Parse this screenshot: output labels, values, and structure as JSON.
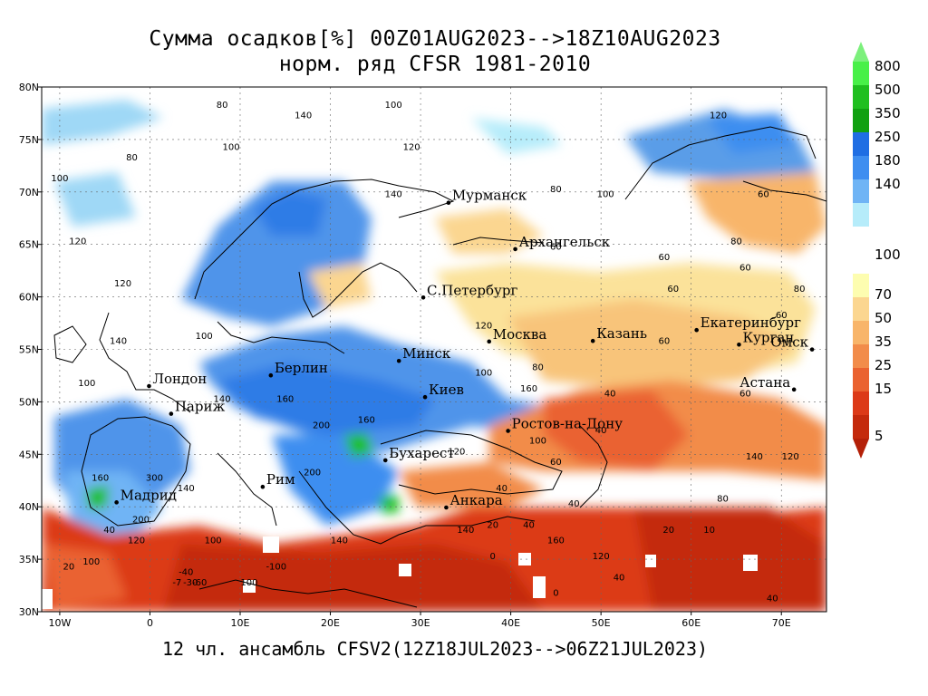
{
  "title_line1": "Сумма осадков[%] 00Z01AUG2023-->18Z10AUG2023",
  "title_line2": "норм. ряд CFSR 1981-2010",
  "footer": "12 чл. ансамбль CFSV2(12Z18JUL2023-->06Z21JUL2023)",
  "map": {
    "lon_range": [
      -12,
      75
    ],
    "lat_range": [
      30,
      80
    ],
    "lon_ticks": [
      {
        "v": -10,
        "label": "10W"
      },
      {
        "v": 0,
        "label": "0"
      },
      {
        "v": 10,
        "label": "10E"
      },
      {
        "v": 20,
        "label": "20E"
      },
      {
        "v": 30,
        "label": "30E"
      },
      {
        "v": 40,
        "label": "40E"
      },
      {
        "v": 50,
        "label": "50E"
      },
      {
        "v": 60,
        "label": "60E"
      },
      {
        "v": 70,
        "label": "70E"
      }
    ],
    "lat_ticks": [
      {
        "v": 30,
        "label": "30N"
      },
      {
        "v": 35,
        "label": "35N"
      },
      {
        "v": 40,
        "label": "40N"
      },
      {
        "v": 45,
        "label": "45N"
      },
      {
        "v": 50,
        "label": "50N"
      },
      {
        "v": 55,
        "label": "55N"
      },
      {
        "v": 60,
        "label": "60N"
      },
      {
        "v": 65,
        "label": "65N"
      },
      {
        "v": 70,
        "label": "70N"
      },
      {
        "v": 75,
        "label": "75N"
      },
      {
        "v": 80,
        "label": "80N"
      }
    ],
    "cities": [
      {
        "name": "Мурманск",
        "lon": 33.1,
        "lat": 68.97
      },
      {
        "name": "Архангельск",
        "lon": 40.5,
        "lat": 64.55
      },
      {
        "name": "С.Петербург",
        "lon": 30.3,
        "lat": 59.94
      },
      {
        "name": "Москва",
        "lon": 37.6,
        "lat": 55.75
      },
      {
        "name": "Казань",
        "lon": 49.1,
        "lat": 55.8
      },
      {
        "name": "Екатеринбург",
        "lon": 60.6,
        "lat": 56.84
      },
      {
        "name": "Курган",
        "lon": 65.3,
        "lat": 55.45
      },
      {
        "name": "Омск",
        "lon": 73.4,
        "lat": 54.99
      },
      {
        "name": "Астана",
        "lon": 71.4,
        "lat": 51.17
      },
      {
        "name": "Минск",
        "lon": 27.6,
        "lat": 53.9
      },
      {
        "name": "Берлин",
        "lon": 13.4,
        "lat": 52.52
      },
      {
        "name": "Лондон",
        "lon": -0.1,
        "lat": 51.5
      },
      {
        "name": "Париж",
        "lon": 2.35,
        "lat": 48.86
      },
      {
        "name": "Киев",
        "lon": 30.5,
        "lat": 50.45
      },
      {
        "name": "Ростов-на-Дону",
        "lon": 39.7,
        "lat": 47.23
      },
      {
        "name": "Бухарест",
        "lon": 26.1,
        "lat": 44.43
      },
      {
        "name": "Рим",
        "lon": 12.5,
        "lat": 41.9
      },
      {
        "name": "Мадрид",
        "lon": -3.7,
        "lat": 40.42
      },
      {
        "name": "Анкара",
        "lon": 32.85,
        "lat": 39.93
      }
    ],
    "contour_labels": [
      {
        "t": "100",
        "lon": -10,
        "lat": 71
      },
      {
        "t": "120",
        "lon": -8,
        "lat": 65
      },
      {
        "t": "80",
        "lon": -2,
        "lat": 73
      },
      {
        "t": "140",
        "lon": 17,
        "lat": 77
      },
      {
        "t": "100",
        "lon": 27,
        "lat": 78
      },
      {
        "t": "120",
        "lon": 29,
        "lat": 74
      },
      {
        "t": "120",
        "lon": 63,
        "lat": 77
      },
      {
        "t": "80",
        "lon": 8,
        "lat": 78
      },
      {
        "t": "100",
        "lon": 9,
        "lat": 74
      },
      {
        "t": "140",
        "lon": 27,
        "lat": 69.5
      },
      {
        "t": "80",
        "lon": 45,
        "lat": 70
      },
      {
        "t": "100",
        "lon": 50.5,
        "lat": 69.5
      },
      {
        "t": "60",
        "lon": 45,
        "lat": 64.5
      },
      {
        "t": "60",
        "lon": 57,
        "lat": 63.5
      },
      {
        "t": "60",
        "lon": 58,
        "lat": 60.5
      },
      {
        "t": "60",
        "lon": 66,
        "lat": 62.5
      },
      {
        "t": "60",
        "lon": 68,
        "lat": 69.5
      },
      {
        "t": "80",
        "lon": 65,
        "lat": 65
      },
      {
        "t": "80",
        "lon": 72,
        "lat": 60.5
      },
      {
        "t": "60",
        "lon": 70,
        "lat": 58
      },
      {
        "t": "60",
        "lon": 57,
        "lat": 55.5
      },
      {
        "t": "80",
        "lon": 43,
        "lat": 53
      },
      {
        "t": "100",
        "lon": 37,
        "lat": 52.5
      },
      {
        "t": "120",
        "lon": 37,
        "lat": 57
      },
      {
        "t": "160",
        "lon": 42,
        "lat": 51
      },
      {
        "t": "40",
        "lon": 51,
        "lat": 50.5
      },
      {
        "t": "60",
        "lon": 66,
        "lat": 50.5
      },
      {
        "t": "140",
        "lon": 67,
        "lat": 44.5
      },
      {
        "t": "120",
        "lon": 71,
        "lat": 44.5
      },
      {
        "t": "80",
        "lon": 63.5,
        "lat": 40.5
      },
      {
        "t": "20",
        "lon": 57.5,
        "lat": 37.5
      },
      {
        "t": "10",
        "lon": 62,
        "lat": 37.5
      },
      {
        "t": "40",
        "lon": 69,
        "lat": 31
      },
      {
        "t": "60",
        "lon": 45,
        "lat": 44
      },
      {
        "t": "40",
        "lon": 47,
        "lat": 40
      },
      {
        "t": "160",
        "lon": 45,
        "lat": 36.5
      },
      {
        "t": "120",
        "lon": 50,
        "lat": 35
      },
      {
        "t": "40",
        "lon": 52,
        "lat": 33
      },
      {
        "t": "20",
        "lon": 38,
        "lat": 38
      },
      {
        "t": "40",
        "lon": 42,
        "lat": 38
      },
      {
        "t": "0",
        "lon": 38,
        "lat": 35
      },
      {
        "t": "0",
        "lon": 45,
        "lat": 31.5
      },
      {
        "t": "120",
        "lon": -3,
        "lat": 61
      },
      {
        "t": "100",
        "lon": 6,
        "lat": 56
      },
      {
        "t": "140",
        "lon": -3.5,
        "lat": 55.5
      },
      {
        "t": "100",
        "lon": -7,
        "lat": 51.5
      },
      {
        "t": "140",
        "lon": 8,
        "lat": 50
      },
      {
        "t": "160",
        "lon": 15,
        "lat": 50
      },
      {
        "t": "200",
        "lon": 19,
        "lat": 47.5
      },
      {
        "t": "160",
        "lon": 24,
        "lat": 48
      },
      {
        "t": "200",
        "lon": 18,
        "lat": 43
      },
      {
        "t": "160",
        "lon": -5.5,
        "lat": 42.5
      },
      {
        "t": "300",
        "lon": 0.5,
        "lat": 42.5
      },
      {
        "t": "140",
        "lon": 4,
        "lat": 41.5
      },
      {
        "t": "200",
        "lon": -1,
        "lat": 38.5
      },
      {
        "t": "40",
        "lon": -4.5,
        "lat": 37.5
      },
      {
        "t": "120",
        "lon": -1.5,
        "lat": 36.5
      },
      {
        "t": "100",
        "lon": 7,
        "lat": 36.5
      },
      {
        "t": "100",
        "lon": 11,
        "lat": 32.5
      },
      {
        "t": "-100",
        "lon": 14,
        "lat": 34
      },
      {
        "t": "-60",
        "lon": 5.5,
        "lat": 32.5
      },
      {
        "t": "-7",
        "lon": 3,
        "lat": 32.5
      },
      {
        "t": "-30",
        "lon": 4.5,
        "lat": 32.5
      },
      {
        "t": "-40",
        "lon": 4,
        "lat": 33.5
      },
      {
        "t": "20",
        "lon": -9,
        "lat": 34
      },
      {
        "t": "100",
        "lon": -6.5,
        "lat": 34.5
      },
      {
        "t": "140",
        "lon": 21,
        "lat": 36.5
      },
      {
        "t": "140",
        "lon": 35,
        "lat": 37.5
      },
      {
        "t": "120",
        "lon": 34,
        "lat": 45
      },
      {
        "t": "100",
        "lon": 43,
        "lat": 46
      },
      {
        "t": "40",
        "lon": 50,
        "lat": 47
      },
      {
        "t": "40",
        "lon": 39,
        "lat": 41.5
      }
    ]
  },
  "colorbar": {
    "upper": [
      {
        "color": "#48f048",
        "label": "800"
      },
      {
        "color": "#1fbf1f",
        "label": "500"
      },
      {
        "color": "#10a010",
        "label": "350"
      },
      {
        "color": "#1f6ee3",
        "label": "250"
      },
      {
        "color": "#3e8ef0",
        "label": "180"
      },
      {
        "color": "#6fb4f5",
        "label": "140"
      },
      {
        "color": "#b6ecfa",
        "label": ""
      }
    ],
    "middle_label": "100",
    "lower": [
      {
        "color": "#fdfdb0",
        "label": "70"
      },
      {
        "color": "#fbd690",
        "label": "50"
      },
      {
        "color": "#f8b56a",
        "label": "35"
      },
      {
        "color": "#f28c4a",
        "label": "25"
      },
      {
        "color": "#ea6230",
        "label": "15"
      },
      {
        "color": "#dc3a18",
        "label": ""
      },
      {
        "color": "#c42a0c",
        "label": "5"
      }
    ],
    "top_arrow_color": "#7cf07c",
    "bottom_arrow_color": "#b42008"
  }
}
